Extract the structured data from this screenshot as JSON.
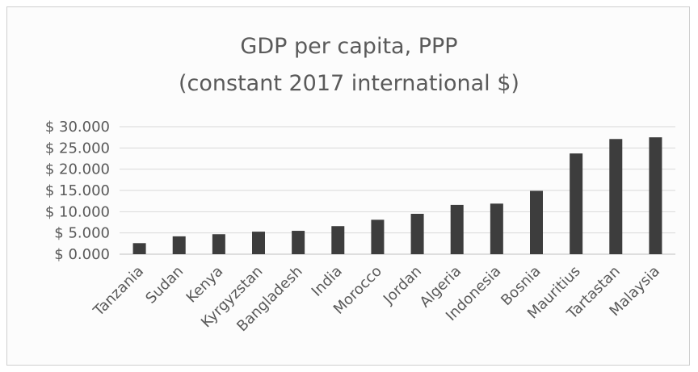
{
  "chart_data": {
    "type": "bar",
    "title_lines": [
      "GDP per capita, PPP",
      "(constant 2017 international $)"
    ],
    "categories": [
      "Tanzania",
      "Sudan",
      "Kenya",
      "Kyrgyzstan",
      "Bangladesh",
      "India",
      "Morocco",
      "Jordan",
      "Algeria",
      "Indonesia",
      "Bosnia",
      "Mauritius",
      "Tartastan",
      "Malaysia"
    ],
    "values": [
      2600,
      4200,
      4700,
      5300,
      5500,
      6600,
      8100,
      9500,
      11600,
      11900,
      14900,
      23700,
      27100,
      27500
    ],
    "yticks": [
      "$ 0.000",
      "$ 5.000",
      "$ 10.000",
      "$ 15.000",
      "$ 20.000",
      "$ 25.000",
      "$ 30.000"
    ],
    "ylim": [
      0,
      30000
    ],
    "grid": true,
    "legend": "none",
    "colors": {
      "bar": "#3d3d3d",
      "grid": "#d9d9d9",
      "text": "#595959"
    }
  }
}
